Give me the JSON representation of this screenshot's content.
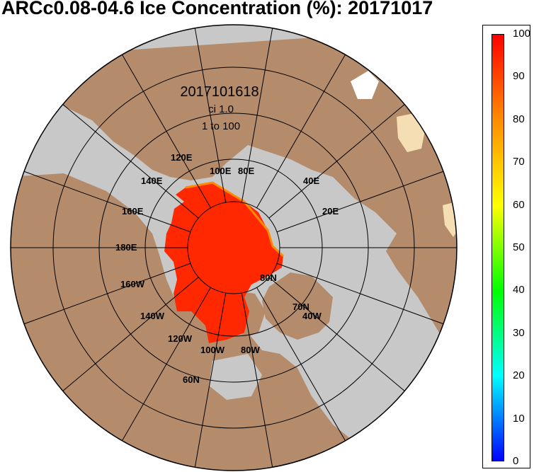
{
  "title": "ARCc0.08-04.6 Ice Concentration (%): 20171017",
  "map": {
    "date_label": "2017101618",
    "ci_label": "ci 1.0",
    "range_label": "1 to 100",
    "lon_labels": [
      "120E",
      "100E",
      "80E",
      "140E",
      "40E",
      "160E",
      "20E",
      "180E",
      "160W",
      "140W",
      "120W",
      "100W",
      "80W",
      "40W"
    ],
    "lat_labels": [
      "80N",
      "70N",
      "60N"
    ],
    "colors": {
      "land": "#b48c6c",
      "ocean": "#c8c8c8",
      "ice": "#ff2800",
      "ice_edge": "#ff8c00",
      "low_ice": "#f5deb3"
    }
  },
  "colorbar": {
    "min": 0,
    "max": 100,
    "ticks": [
      "100",
      "90",
      "80",
      "70",
      "60",
      "50",
      "40",
      "30",
      "20",
      "10",
      "0"
    ],
    "gradient": [
      "#0000ff",
      "#00ffff",
      "#00ff00",
      "#ffff00",
      "#ff8c00",
      "#ff0000"
    ]
  }
}
